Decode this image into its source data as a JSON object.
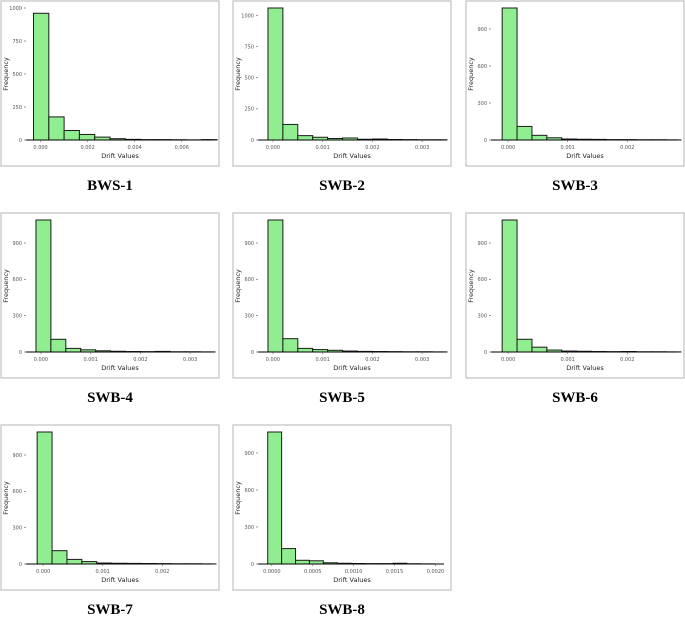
{
  "chart_data": [
    {
      "type": "bar",
      "caption": "BWS-1",
      "xlabel": "Drift Values",
      "ylabel": "Frequency",
      "xlim": [
        -0.00045,
        0.0072
      ],
      "ylim": [
        0,
        1000
      ],
      "xticks": [
        0.0,
        0.002,
        0.004,
        0.006
      ],
      "xtick_labels": [
        "0.000",
        "0.002",
        "0.004",
        "0.006"
      ],
      "yticks": [
        0,
        250,
        500,
        750,
        1000
      ],
      "ytick_labels": [
        "0",
        "250",
        "500",
        "750",
        "1000"
      ],
      "bin_edges": [
        -0.0003,
        0.00035,
        0.001,
        0.00165,
        0.0023,
        0.00295,
        0.0036,
        0.00425,
        0.0049,
        0.00555,
        0.0062,
        0.00685,
        0.0075
      ],
      "values": [
        960,
        175,
        72,
        42,
        22,
        10,
        5,
        3,
        3,
        2,
        1,
        3
      ],
      "grid": false,
      "legend": "none"
    },
    {
      "type": "bar",
      "caption": "SWB-2",
      "xlabel": "Drift Values",
      "ylabel": "Frequency",
      "xlim": [
        -0.00022,
        0.0034
      ],
      "ylim": [
        0,
        1060
      ],
      "xticks": [
        0.0,
        0.001,
        0.002,
        0.003
      ],
      "xtick_labels": [
        "0.000",
        "0.001",
        "0.002",
        "0.003"
      ],
      "yticks": [
        0,
        250,
        500,
        750,
        1000
      ],
      "ytick_labels": [
        "0",
        "250",
        "500",
        "750",
        "1000"
      ],
      "bin_edges": [
        -0.0001,
        0.0002,
        0.0005,
        0.0008,
        0.0011,
        0.0014,
        0.0017,
        0.002,
        0.0023,
        0.0026,
        0.0029,
        0.0032,
        0.0035
      ],
      "values": [
        1060,
        125,
        35,
        22,
        12,
        16,
        6,
        8,
        4,
        3,
        2,
        2
      ],
      "grid": false,
      "legend": "none"
    },
    {
      "type": "bar",
      "caption": "SWB-3",
      "xlabel": "Drift Values",
      "ylabel": "Frequency",
      "xlim": [
        -0.00022,
        0.0028
      ],
      "ylim": [
        0,
        1070
      ],
      "xticks": [
        0.0,
        0.001,
        0.002
      ],
      "xtick_labels": [
        "0.000",
        "0.001",
        "0.002"
      ],
      "yticks": [
        0,
        300,
        600,
        900
      ],
      "ytick_labels": [
        "0",
        "300",
        "600",
        "900"
      ],
      "bin_edges": [
        -0.0001,
        0.00015,
        0.0004,
        0.00065,
        0.0009,
        0.00115,
        0.0014,
        0.00165,
        0.0019,
        0.00215,
        0.0024,
        0.00265,
        0.0029
      ],
      "values": [
        1070,
        110,
        38,
        18,
        8,
        6,
        5,
        3,
        3,
        2,
        2,
        1
      ],
      "grid": false,
      "legend": "none"
    },
    {
      "type": "bar",
      "caption": "SWB-4",
      "xlabel": "Drift Values",
      "ylabel": "Frequency",
      "xlim": [
        -0.00022,
        0.0034
      ],
      "ylim": [
        0,
        1090
      ],
      "xticks": [
        0.0,
        0.001,
        0.002,
        0.003
      ],
      "xtick_labels": [
        "0.000",
        "0.001",
        "0.002",
        "0.003"
      ],
      "yticks": [
        0,
        300,
        600,
        900
      ],
      "ytick_labels": [
        "0",
        "300",
        "600",
        "900"
      ],
      "bin_edges": [
        -0.0001,
        0.0002,
        0.0005,
        0.0008,
        0.0011,
        0.0014,
        0.0017,
        0.002,
        0.0023,
        0.0026,
        0.0029,
        0.0032,
        0.0035
      ],
      "values": [
        1090,
        105,
        30,
        18,
        10,
        6,
        4,
        3,
        5,
        2,
        2,
        1
      ],
      "grid": false,
      "legend": "none"
    },
    {
      "type": "bar",
      "caption": "SWB-5",
      "xlabel": "Drift Values",
      "ylabel": "Frequency",
      "xlim": [
        -0.00022,
        0.0034
      ],
      "ylim": [
        0,
        1090
      ],
      "xticks": [
        0.0,
        0.001,
        0.002,
        0.003
      ],
      "xtick_labels": [
        "0.000",
        "0.001",
        "0.002",
        "0.003"
      ],
      "yticks": [
        0,
        300,
        600,
        900
      ],
      "ytick_labels": [
        "0",
        "300",
        "600",
        "900"
      ],
      "bin_edges": [
        -0.0001,
        0.0002,
        0.0005,
        0.0008,
        0.0011,
        0.0014,
        0.0017,
        0.002,
        0.0023,
        0.0026,
        0.0029,
        0.0032,
        0.0035
      ],
      "values": [
        1090,
        110,
        30,
        20,
        14,
        8,
        5,
        4,
        3,
        2,
        2,
        1
      ],
      "grid": false,
      "legend": "none"
    },
    {
      "type": "bar",
      "caption": "SWB-6",
      "xlabel": "Drift Values",
      "ylabel": "Frequency",
      "xlim": [
        -0.00022,
        0.0028
      ],
      "ylim": [
        0,
        1090
      ],
      "xticks": [
        0.0,
        0.001,
        0.002
      ],
      "xtick_labels": [
        "0.000",
        "0.001",
        "0.002"
      ],
      "yticks": [
        0,
        300,
        600,
        900
      ],
      "ytick_labels": [
        "0",
        "300",
        "600",
        "900"
      ],
      "bin_edges": [
        -0.0001,
        0.00015,
        0.0004,
        0.00065,
        0.0009,
        0.00115,
        0.0014,
        0.00165,
        0.0019,
        0.00215,
        0.0024,
        0.00265,
        0.0029
      ],
      "values": [
        1090,
        105,
        40,
        16,
        8,
        6,
        4,
        3,
        4,
        2,
        2,
        1
      ],
      "grid": false,
      "legend": "none"
    },
    {
      "type": "bar",
      "caption": "SWB-7",
      "xlabel": "Drift Values",
      "ylabel": "Frequency",
      "xlim": [
        -0.00022,
        0.0028
      ],
      "ylim": [
        0,
        1090
      ],
      "xticks": [
        0.0,
        0.001,
        0.002
      ],
      "xtick_labels": [
        "0.000",
        "0.001",
        "0.002"
      ],
      "yticks": [
        0,
        300,
        600,
        900
      ],
      "ytick_labels": [
        "0",
        "300",
        "600",
        "900"
      ],
      "bin_edges": [
        -0.0001,
        0.00015,
        0.0004,
        0.00065,
        0.0009,
        0.00115,
        0.0014,
        0.00165,
        0.0019,
        0.00215,
        0.0024,
        0.00265,
        0.0029
      ],
      "values": [
        1090,
        110,
        38,
        20,
        8,
        6,
        5,
        4,
        3,
        2,
        2,
        1
      ],
      "grid": false,
      "legend": "none"
    },
    {
      "type": "bar",
      "caption": "SWB-8",
      "xlabel": "Drift Values",
      "ylabel": "Frequency",
      "xlim": [
        -0.00012,
        0.00208
      ],
      "ylim": [
        0,
        1070
      ],
      "xticks": [
        0.0,
        0.0005,
        0.001,
        0.0015,
        0.002
      ],
      "xtick_labels": [
        "0.0000",
        "0.0005",
        "0.0010",
        "0.0015",
        "0.0020"
      ],
      "yticks": [
        0,
        300,
        600,
        900
      ],
      "ytick_labels": [
        "0",
        "300",
        "600",
        "900"
      ],
      "bin_edges": [
        -5e-05,
        0.00012,
        0.00029,
        0.00046,
        0.00063,
        0.0008,
        0.00097,
        0.00114,
        0.00131,
        0.00148,
        0.00165,
        0.00182,
        0.00199
      ],
      "values": [
        1070,
        125,
        30,
        26,
        10,
        6,
        4,
        3,
        3,
        6,
        2,
        1
      ],
      "grid": false,
      "legend": "none"
    }
  ]
}
